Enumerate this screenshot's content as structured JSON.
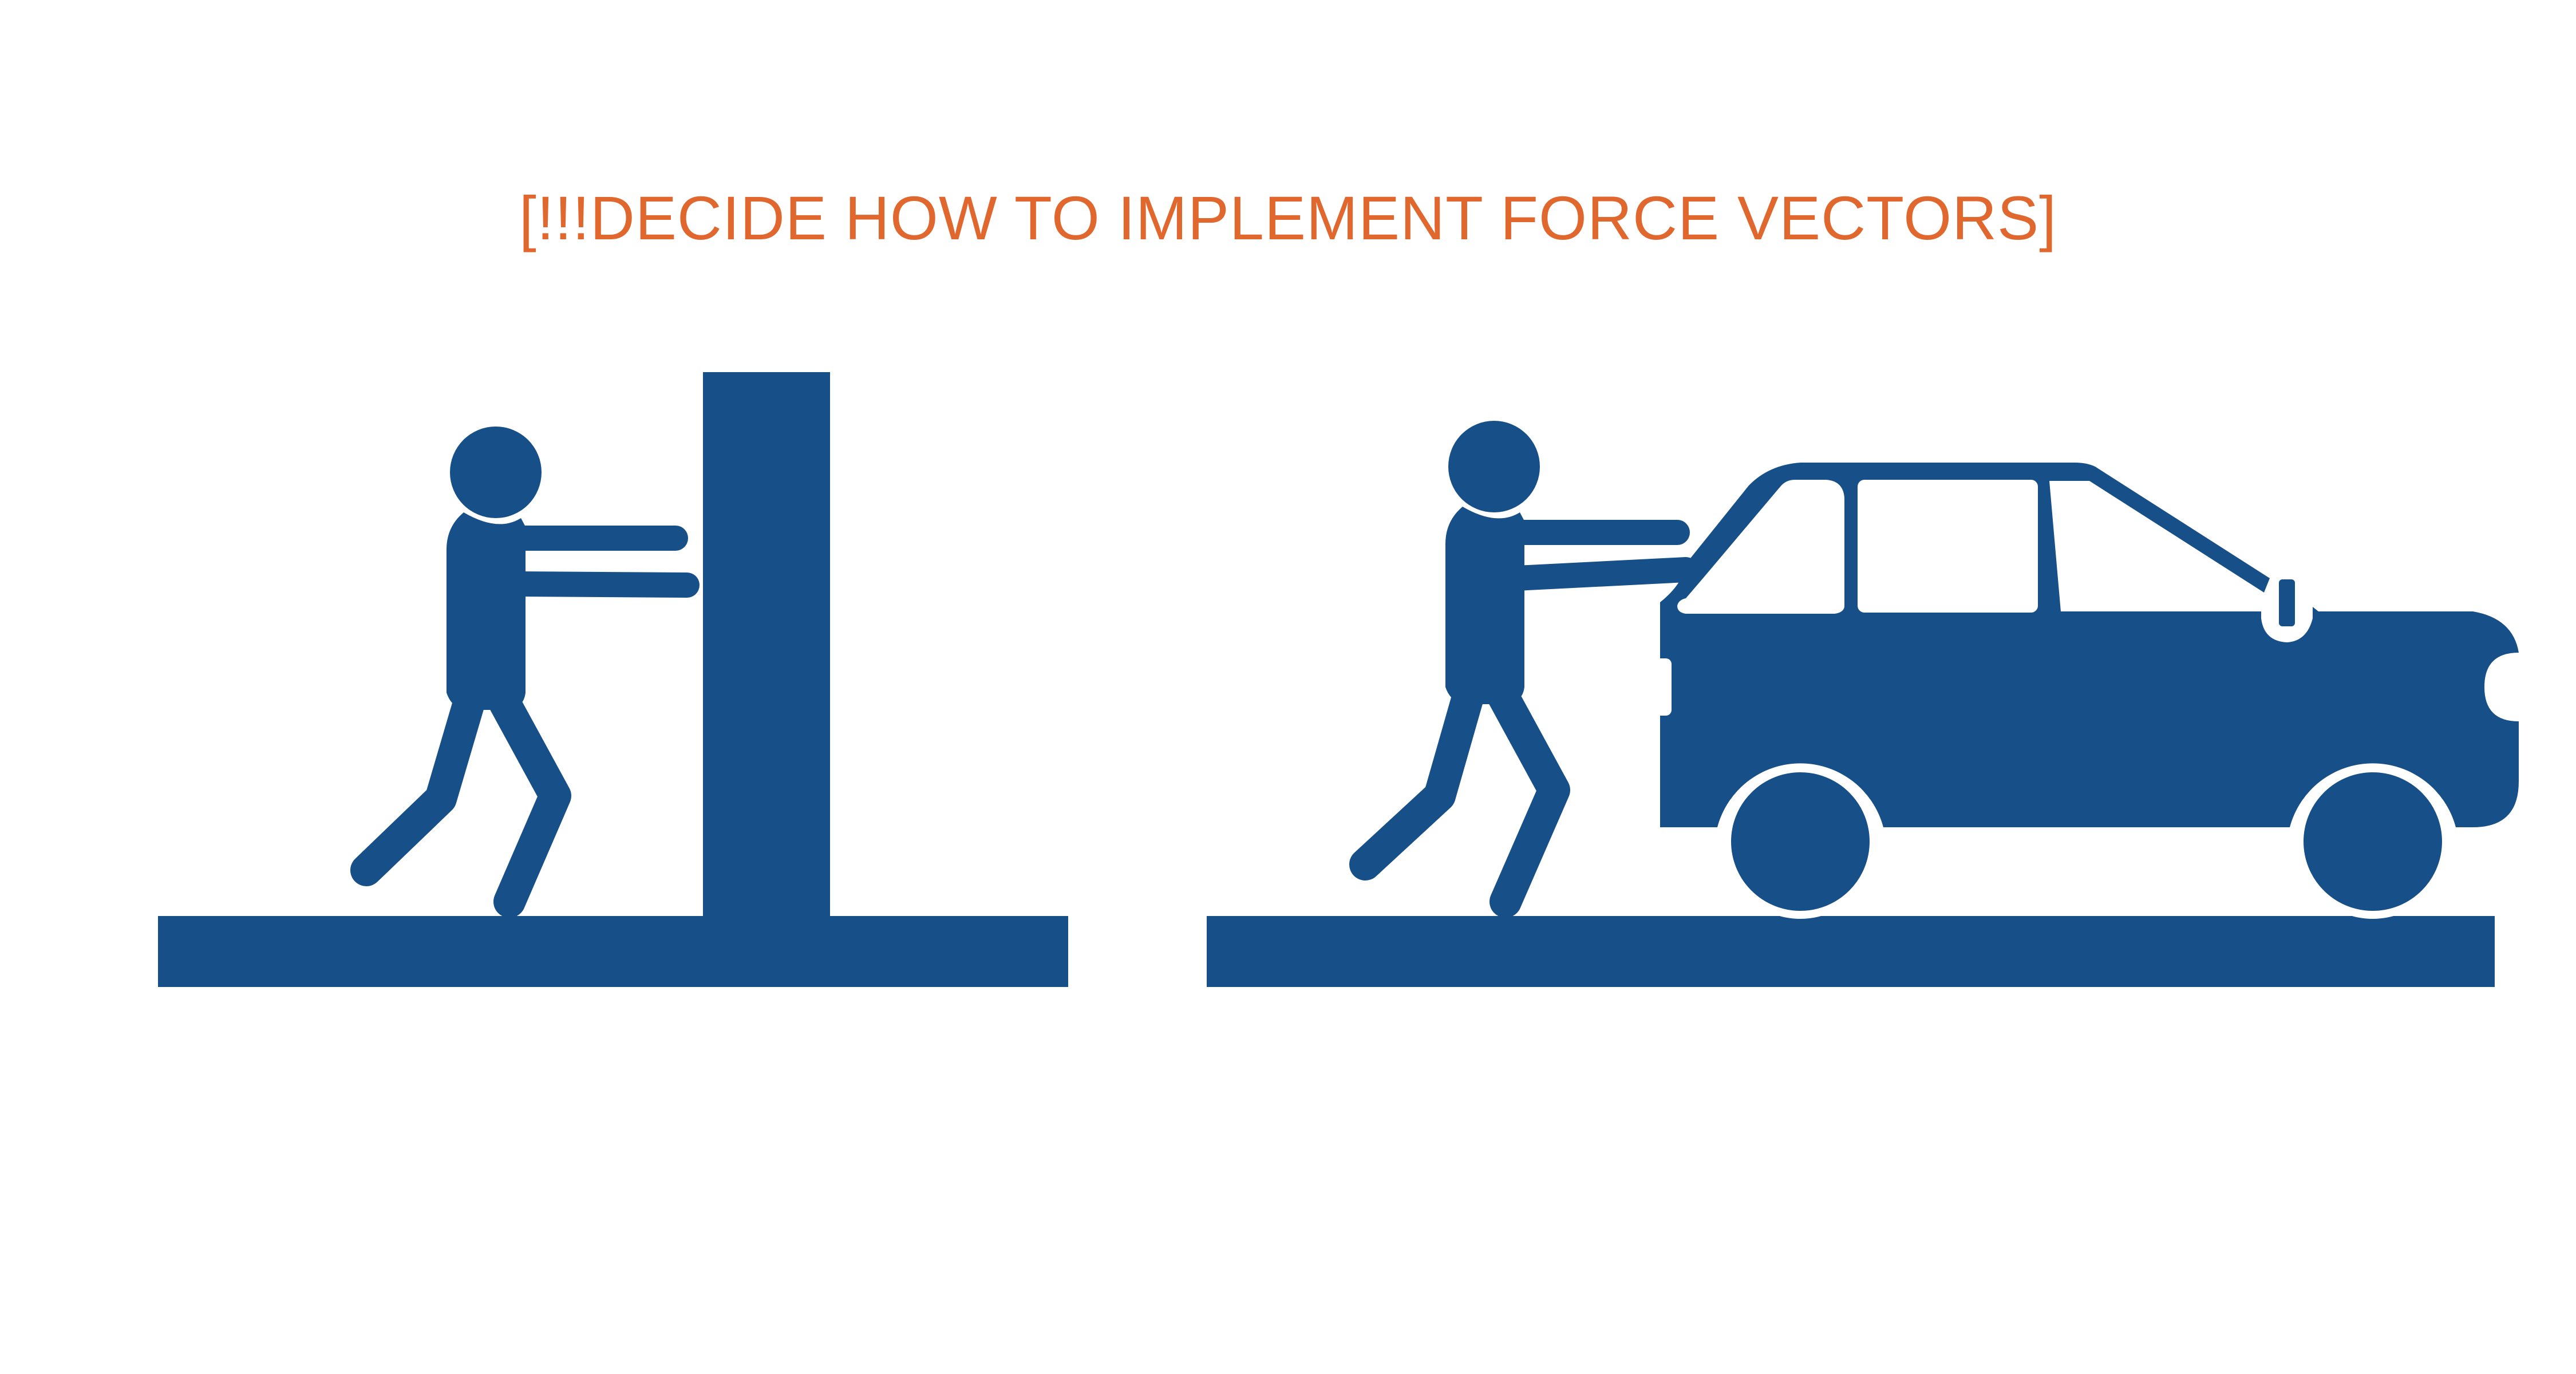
{
  "title": "[!!!DECIDE HOW TO IMPLEMENT FORCE VECTORS]",
  "colors": {
    "figure": "#175088",
    "title": "#e0672e",
    "background": "#ffffff"
  },
  "scenes": [
    {
      "name": "person-pushing-wall",
      "pushed_object": "wall"
    },
    {
      "name": "person-pushing-car",
      "pushed_object": "car"
    }
  ]
}
